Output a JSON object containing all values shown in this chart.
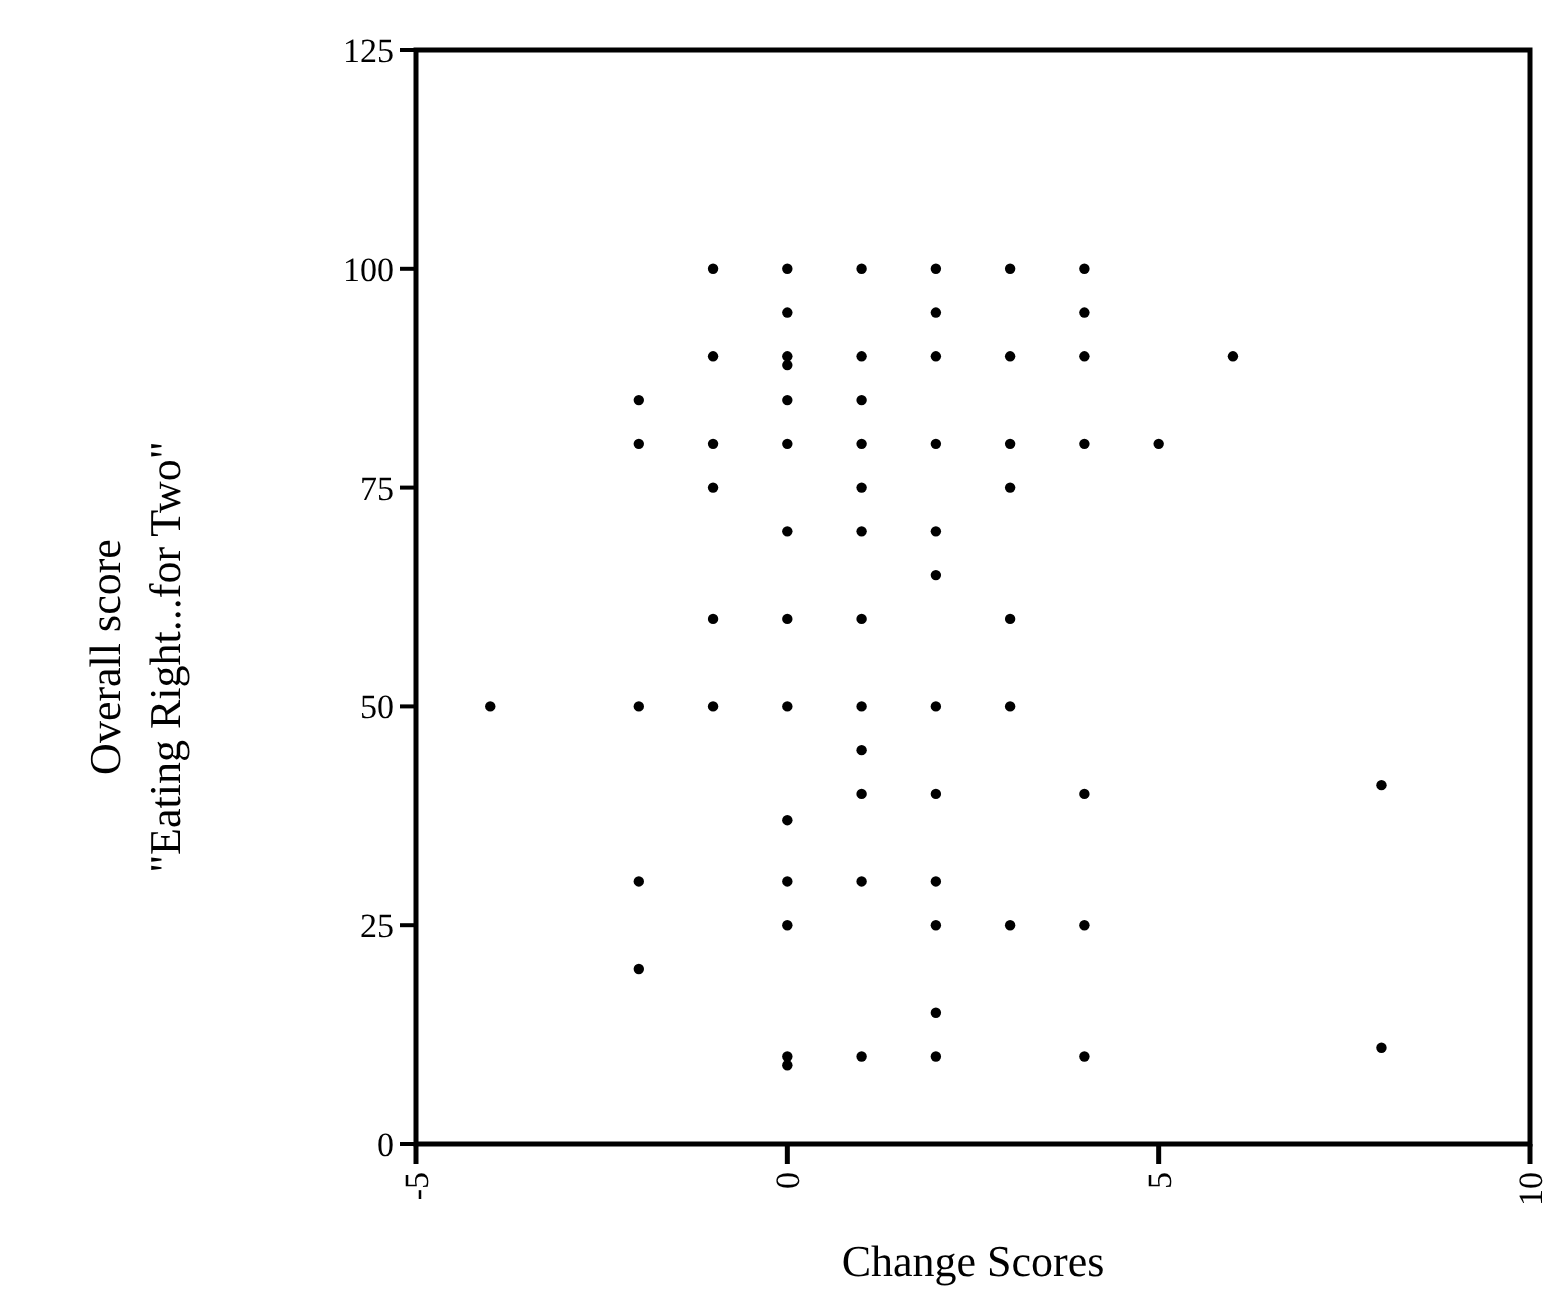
{
  "chart_data": {
    "type": "scatter",
    "xlabel": "Change Scores",
    "ylabel": "Overall score\n\"Eating Right...for Two\"",
    "xlim": [
      -5,
      10
    ],
    "xticks": [
      -5,
      0,
      5,
      10
    ],
    "ylim": [
      0,
      125
    ],
    "yticks": [
      0,
      25,
      50,
      75,
      100,
      125
    ],
    "grid": false,
    "marker": "circle",
    "series": [
      {
        "color": "#000000",
        "x": [
          -4,
          -2,
          -2,
          -2,
          -2,
          -2,
          -1,
          -1,
          -1,
          -1,
          -1,
          -1,
          0,
          0,
          0,
          0,
          0,
          0,
          0,
          0,
          0,
          0,
          0,
          0,
          0,
          0,
          1,
          1,
          1,
          1,
          1,
          1,
          1,
          1,
          1,
          1,
          1,
          1,
          2,
          2,
          2,
          2,
          2,
          2,
          2,
          2,
          2,
          2,
          2,
          2,
          3,
          3,
          3,
          3,
          3,
          3,
          3,
          4,
          4,
          4,
          4,
          4,
          4,
          4,
          5,
          6,
          8,
          8
        ],
        "values": [
          50,
          85,
          80,
          50,
          30,
          20,
          100,
          90,
          80,
          75,
          60,
          50,
          100,
          95,
          90,
          89,
          85,
          80,
          70,
          60,
          50,
          37,
          30,
          25,
          10,
          9,
          100,
          90,
          85,
          80,
          75,
          70,
          60,
          50,
          45,
          40,
          30,
          10,
          100,
          95,
          90,
          80,
          70,
          65,
          50,
          40,
          30,
          25,
          15,
          10,
          100,
          90,
          80,
          75,
          60,
          50,
          25,
          100,
          95,
          90,
          80,
          40,
          25,
          10,
          80,
          90,
          41,
          11
        ]
      }
    ]
  }
}
